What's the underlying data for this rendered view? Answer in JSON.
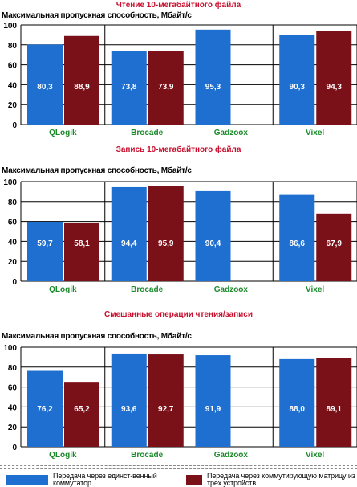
{
  "colors": {
    "series1": "#1f6fd0",
    "series2": "#7a1118",
    "title": "#c8102e",
    "category_label": "#1a8a2a",
    "value_label": "#ffffff",
    "grid": "#000000"
  },
  "chart_data": [
    {
      "type": "bar",
      "title": "Чтение 10-мегабайтного файла",
      "ylabel": "Максимальная пропускная способность, Мбайт/с",
      "categories": [
        "QLogik",
        "Brocade",
        "Gadzoox",
        "Vixel"
      ],
      "yticks": [
        "0",
        "20",
        "40",
        "60",
        "80",
        "100"
      ],
      "ylim": [
        0,
        100
      ],
      "series": [
        {
          "values": [
            80.3,
            73.8,
            95.3,
            90.3
          ],
          "labels": [
            "80,3",
            "73,8",
            "95,3",
            "90,3"
          ]
        },
        {
          "values": [
            88.9,
            73.9,
            null,
            94.3
          ],
          "labels": [
            "88,9",
            "73,9",
            "",
            "94,3"
          ]
        }
      ]
    },
    {
      "type": "bar",
      "title": "Запись 10-мегабайтного файла",
      "ylabel": "Максимальная пропускная способность, Мбайт/с",
      "categories": [
        "QLogik",
        "Brocade",
        "Gadzoox",
        "Vixel"
      ],
      "yticks": [
        "0",
        "20",
        "40",
        "60",
        "80",
        "100"
      ],
      "ylim": [
        0,
        100
      ],
      "series": [
        {
          "values": [
            59.7,
            94.4,
            90.4,
            86.6
          ],
          "labels": [
            "59,7",
            "94,4",
            "90,4",
            "86,6"
          ]
        },
        {
          "values": [
            58.1,
            95.9,
            null,
            67.9
          ],
          "labels": [
            "58,1",
            "95,9",
            "",
            "67,9"
          ]
        }
      ]
    },
    {
      "type": "bar",
      "title": "Смешанные операции чтения/записи",
      "ylabel": "Максимальная пропускная способность, Мбайт/с",
      "categories": [
        "QLogik",
        "Brocade",
        "Gadzoox",
        "Vixel"
      ],
      "yticks": [
        "0",
        "20",
        "40",
        "60",
        "80",
        "100"
      ],
      "ylim": [
        0,
        100
      ],
      "series": [
        {
          "values": [
            76.2,
            93.6,
            91.9,
            88.0
          ],
          "labels": [
            "76,2",
            "93,6",
            "91,9",
            "88,0"
          ]
        },
        {
          "values": [
            65.2,
            92.7,
            null,
            89.1
          ],
          "labels": [
            "65,2",
            "92,7",
            "",
            "89,1"
          ]
        }
      ]
    }
  ],
  "legend": [
    {
      "text": "Передача через единст-венный коммутатор"
    },
    {
      "text": "Передача через коммутирующую матрицу из трех устройств"
    }
  ]
}
